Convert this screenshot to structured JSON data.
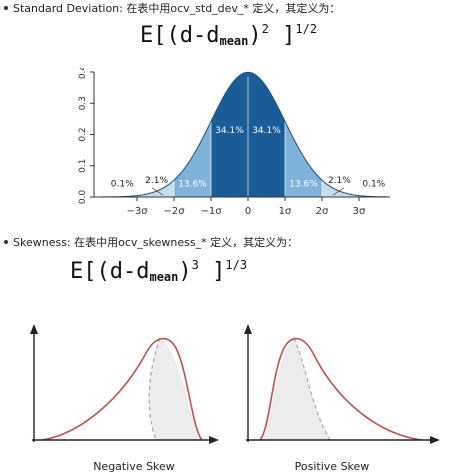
{
  "section1": {
    "bullet_text": "Standard Deviation: 在表中用ocv_std_dev_* 定义，其定义为：",
    "formula": {
      "prefix": "E[(d-d",
      "sub": "mean",
      "mid": ")",
      "exp1": "2",
      "close": " ]",
      "exp2": "1/2"
    }
  },
  "section2": {
    "bullet_text": "Skewness: 在表中用ocv_skewness_* 定义，其定义为：",
    "formula": {
      "prefix": "E[(d-d",
      "sub": "mean",
      "mid": ")",
      "exp1": "3",
      "close": " ]",
      "exp2": "1/3"
    }
  },
  "normal_chart": {
    "y_ticks": [
      "0.0",
      "0.1",
      "0.2",
      "0.3",
      "0.4"
    ],
    "x_ticks": [
      "−3σ",
      "−2σ",
      "−1σ",
      "0",
      "1σ",
      "2σ",
      "3σ"
    ],
    "region_labels": [
      "0.1%",
      "2.1%",
      "13.6%",
      "34.1%",
      "34.1%",
      "13.6%",
      "2.1%",
      "0.1%"
    ],
    "colors": {
      "center": "#1a5c97",
      "mid": "#3c87c0",
      "outer": "#7fb3da",
      "tail": "#c6dcef"
    }
  },
  "skew_charts": {
    "negative_label": "Negative Skew",
    "positive_label": "Positive Skew",
    "colors": {
      "curve": "#c0504d",
      "reference": "#a8a8a8",
      "fill": "#ececec"
    }
  }
}
